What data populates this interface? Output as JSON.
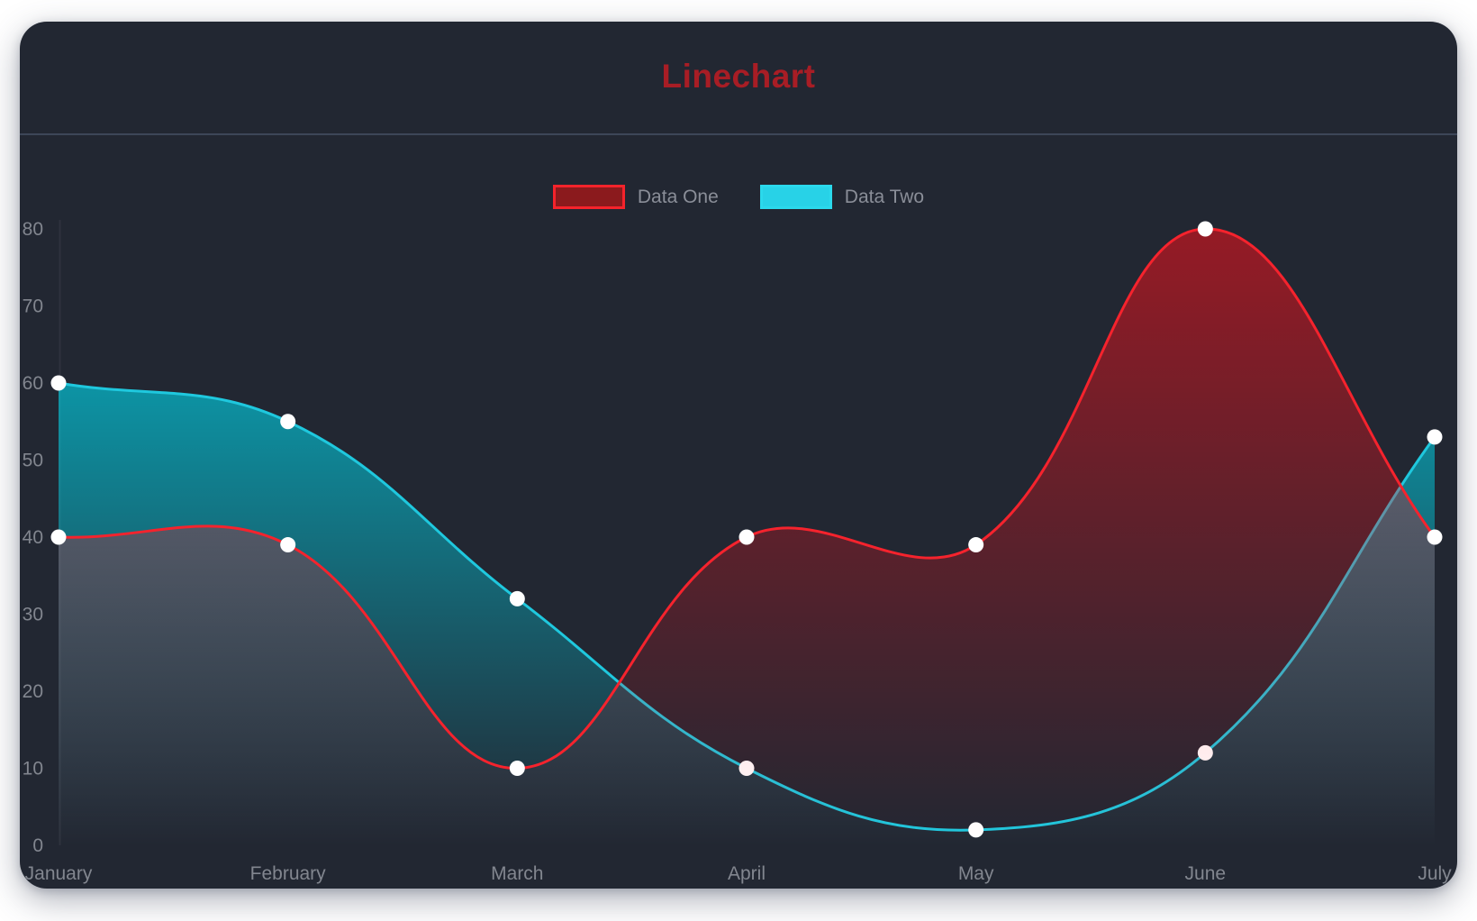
{
  "title": {
    "text": "Linechart",
    "color": "#a81d25"
  },
  "card": {
    "background": "#222732",
    "divider_color": "#3d4658",
    "page_background": "#ffffff"
  },
  "legend": {
    "position": "top",
    "text_color": "#8a8e98",
    "items": [
      {
        "label": "Data One",
        "swatch_fill": "#8b1a1d",
        "swatch_border": "#f5232b"
      },
      {
        "label": "Data Two",
        "swatch_fill": "#28d2e7",
        "swatch_border": "#2bd9ec"
      }
    ]
  },
  "chart_data": {
    "type": "line",
    "title": "Linechart",
    "categories": [
      "January",
      "February",
      "March",
      "April",
      "May",
      "June",
      "July"
    ],
    "series": [
      {
        "name": "Data One",
        "values": [
          40,
          39,
          10,
          40,
          39,
          80,
          40
        ],
        "line_color": "#f5232d",
        "point_color": "#ffffff",
        "fill_top": "rgba(255,15,25,0.52)",
        "fill_bottom": "rgba(255,15,25,0)"
      },
      {
        "name": "Data Two",
        "values": [
          60,
          55,
          32,
          10,
          2,
          12,
          53
        ],
        "line_color": "#1fc8de",
        "point_color": "#ffffff",
        "fill_top": "rgba(0,210,230,0.85)",
        "fill_bottom": "rgba(0,210,230,0)"
      }
    ],
    "draw_order": [
      "Data Two",
      "Data One"
    ],
    "xlabel": "",
    "ylabel": "",
    "ylim": [
      0,
      80
    ],
    "yticks": [
      0,
      10,
      20,
      30,
      40,
      50,
      60,
      70,
      80
    ],
    "curve_tension": 0.4,
    "grid": false,
    "legend_position": "top",
    "axis_text_color": "#82868f",
    "background": "#222732"
  }
}
